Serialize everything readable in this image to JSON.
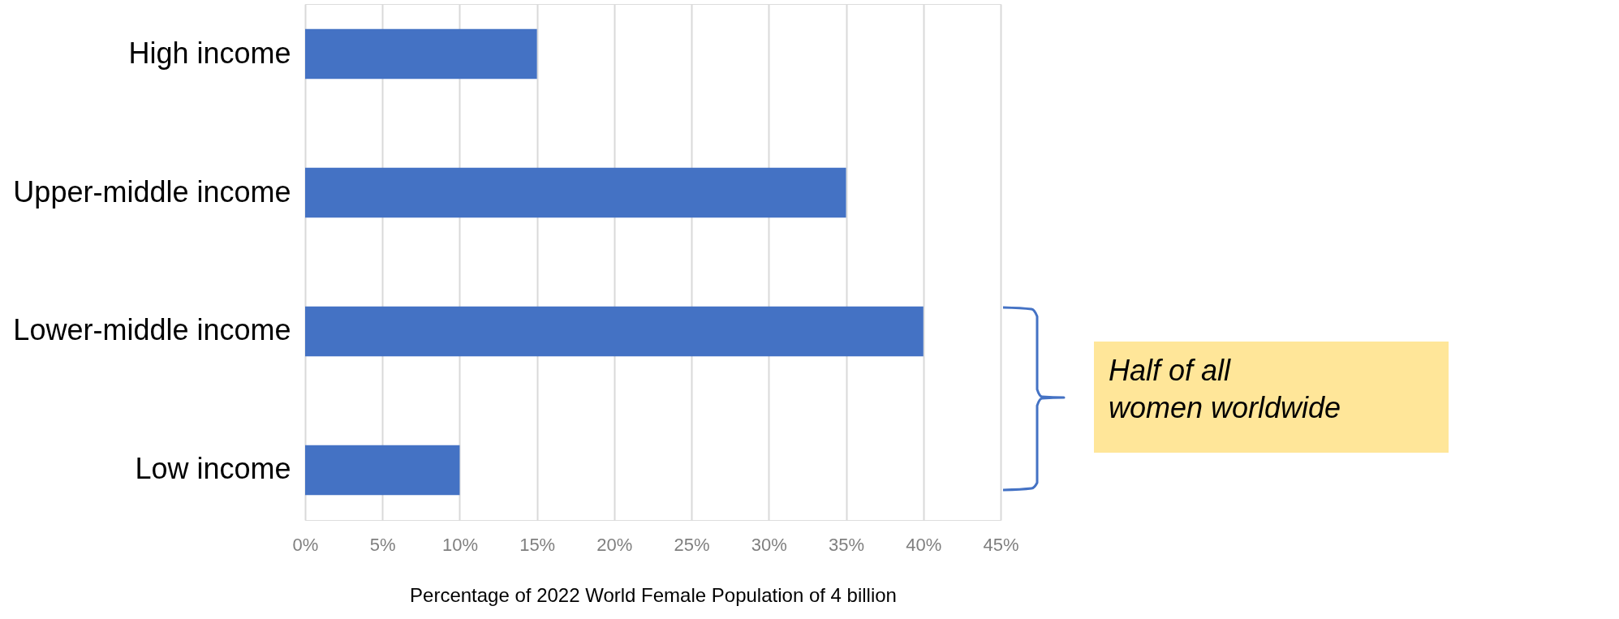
{
  "chart_data": {
    "type": "bar",
    "orientation": "horizontal",
    "categories": [
      "High income",
      "Upper-middle income",
      "Lower-middle income",
      "Low income"
    ],
    "values": [
      15,
      35,
      40,
      10
    ],
    "color": "#4472c4",
    "xlim": [
      0,
      45
    ],
    "xticks": [
      {
        "value": 0,
        "label": "0%"
      },
      {
        "value": 5,
        "label": "5%"
      },
      {
        "value": 10,
        "label": "10%"
      },
      {
        "value": 15,
        "label": "15%"
      },
      {
        "value": 20,
        "label": "20%"
      },
      {
        "value": 25,
        "label": "25%"
      },
      {
        "value": 30,
        "label": "30%"
      },
      {
        "value": 35,
        "label": "35%"
      },
      {
        "value": 40,
        "label": "40%"
      },
      {
        "value": 45,
        "label": "45%"
      }
    ],
    "xlabel": "Percentage of 2022 World Female Population of 4 billion",
    "grid": "x",
    "annotations": [
      "Half of all\nwomen worldwide"
    ]
  }
}
